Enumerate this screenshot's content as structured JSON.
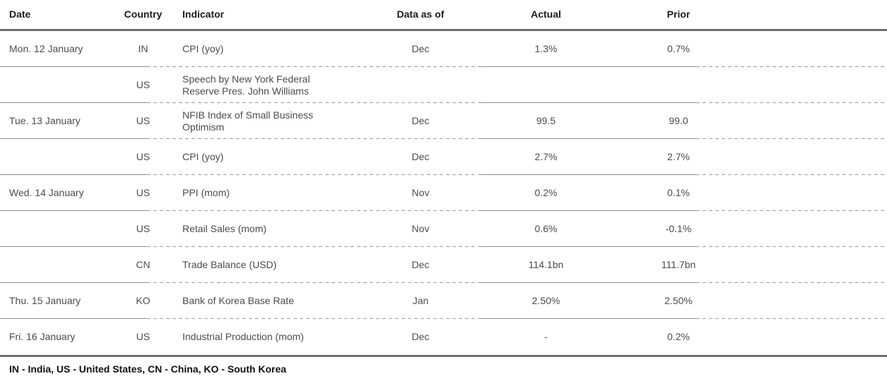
{
  "table": {
    "columns": [
      {
        "key": "date",
        "label": "Date"
      },
      {
        "key": "country",
        "label": "Country"
      },
      {
        "key": "indicator",
        "label": "Indicator"
      },
      {
        "key": "data_as_of",
        "label": "Data as of"
      },
      {
        "key": "actual",
        "label": "Actual"
      },
      {
        "key": "prior",
        "label": "Prior"
      }
    ],
    "rows": [
      {
        "date": "Mon. 12 January",
        "country": "IN",
        "indicator": "CPI (yoy)",
        "data_as_of": "Dec",
        "actual": "1.3%",
        "prior": "0.7%"
      },
      {
        "date": "",
        "country": "US",
        "indicator": "Speech by New York Federal Reserve Pres. John Williams",
        "data_as_of": "",
        "actual": "",
        "prior": ""
      },
      {
        "date": "Tue. 13 January",
        "country": "US",
        "indicator": "NFIB Index of Small Business Optimism",
        "data_as_of": "Dec",
        "actual": "99.5",
        "prior": "99.0"
      },
      {
        "date": "",
        "country": "US",
        "indicator": "CPI (yoy)",
        "data_as_of": "Dec",
        "actual": "2.7%",
        "prior": "2.7%"
      },
      {
        "date": "Wed. 14 January",
        "country": "US",
        "indicator": "PPI (mom)",
        "data_as_of": "Nov",
        "actual": "0.2%",
        "prior": "0.1%"
      },
      {
        "date": "",
        "country": "US",
        "indicator": "Retail Sales (mom)",
        "data_as_of": "Nov",
        "actual": "0.6%",
        "prior": "-0.1%"
      },
      {
        "date": "",
        "country": "CN",
        "indicator": "Trade Balance (USD)",
        "data_as_of": "Dec",
        "actual": "114.1bn",
        "prior": "111.7bn"
      },
      {
        "date": "Thu. 15 January",
        "country": "KO",
        "indicator": "Bank of Korea Base Rate",
        "data_as_of": "Jan",
        "actual": "2.50%",
        "prior": "2.50%"
      },
      {
        "date": "Fri. 16 January",
        "country": "US",
        "indicator": "Industrial Production (mom)",
        "data_as_of": "Dec",
        "actual": "-",
        "prior": "0.2%"
      }
    ],
    "footnote": "IN - India, US - United States, CN - China, KO - South Korea"
  },
  "colors": {
    "rule_thick": "#6f6f6f",
    "divider_solid": "#8c8c8c",
    "divider_dashed": "#9b9b9b",
    "header_text": "#1c1c1c",
    "body_text": "#4c4c4c",
    "footnote_text": "#101010",
    "background": "#ffffff"
  }
}
